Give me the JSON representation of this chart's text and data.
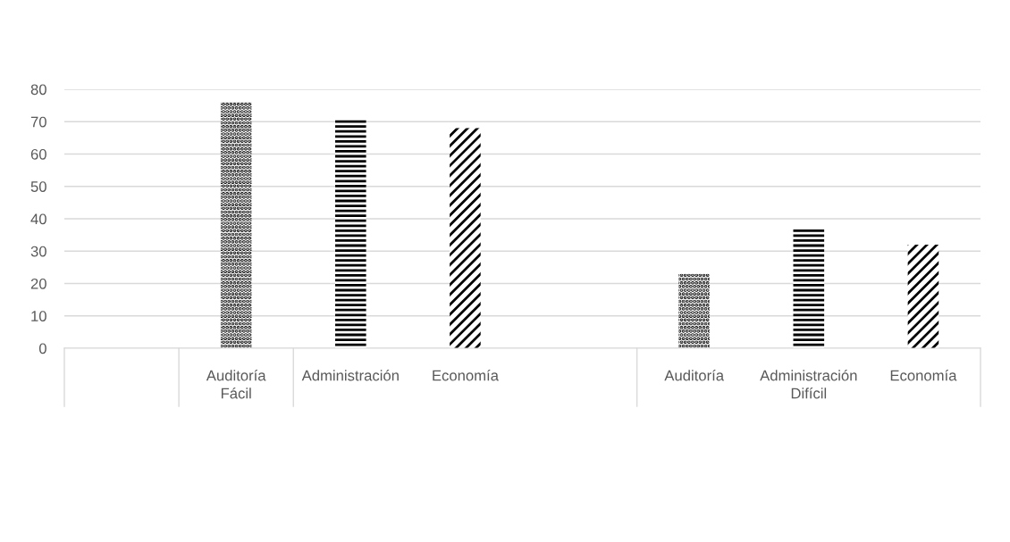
{
  "chart_data": {
    "type": "bar",
    "categories": [
      null,
      "Auditoría",
      "Administración",
      "Economía",
      null,
      "Auditoría",
      "Administración",
      "Economía"
    ],
    "series": [
      {
        "color": "#000000",
        "values": [
          null,
          76,
          null,
          null,
          null,
          23,
          null,
          null
        ]
      },
      {
        "color": "#000000",
        "values": [
          null,
          null,
          71,
          null,
          null,
          null,
          37,
          null
        ]
      },
      {
        "color": "#000000",
        "values": [
          null,
          null,
          null,
          68,
          null,
          null,
          null,
          32
        ]
      }
    ],
    "annotations": [
      "Fácil",
      "Difícil"
    ],
    "ylim": [
      0,
      80
    ],
    "yticks": [
      0,
      10,
      20,
      30,
      40,
      50,
      60,
      70,
      80
    ],
    "grid": "y"
  }
}
